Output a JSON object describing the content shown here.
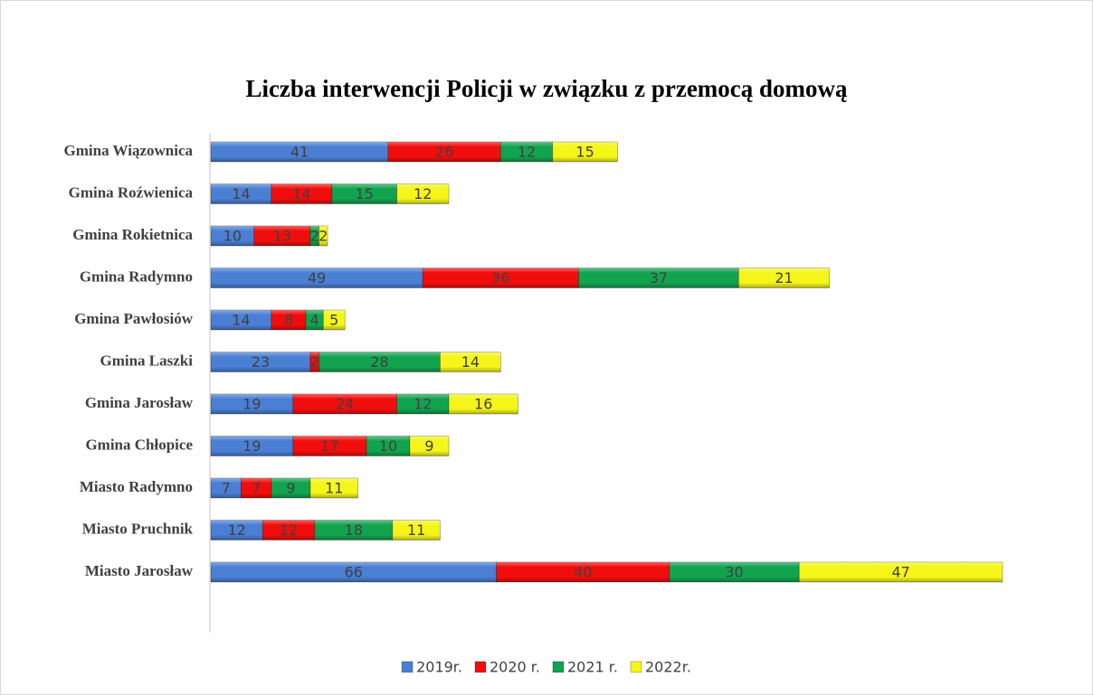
{
  "chart_data": {
    "type": "stacked-bar-horizontal",
    "title": "Liczba interwencji Policji w związku z przemocą domową",
    "categories": [
      "Gmina Wiązownica",
      "Gmina Roźwienica",
      "Gmina Rokietnica",
      "Gmina Radymno",
      "Gmina Pawłosiów",
      "Gmina Laszki",
      "Gmina Jarosław",
      "Gmina Chłopice",
      "Miasto Radymno",
      "Miasto Pruchnik",
      "Miasto Jarosław"
    ],
    "series": [
      {
        "name": "2019r.",
        "color": "#4a7fd4",
        "values": [
          41,
          14,
          10,
          49,
          14,
          23,
          19,
          19,
          7,
          12,
          66
        ]
      },
      {
        "name": "2020 r.",
        "color": "#f20d0d",
        "values": [
          26,
          14,
          13,
          36,
          8,
          2,
          24,
          17,
          7,
          12,
          40
        ]
      },
      {
        "name": "2021 r.",
        "color": "#12a34f",
        "values": [
          12,
          15,
          2,
          37,
          4,
          28,
          12,
          10,
          9,
          18,
          30
        ]
      },
      {
        "name": "2022r.",
        "color": "#f5f51a",
        "values": [
          15,
          12,
          2,
          21,
          5,
          14,
          16,
          9,
          11,
          11,
          47
        ]
      }
    ],
    "legend": "bottom"
  }
}
